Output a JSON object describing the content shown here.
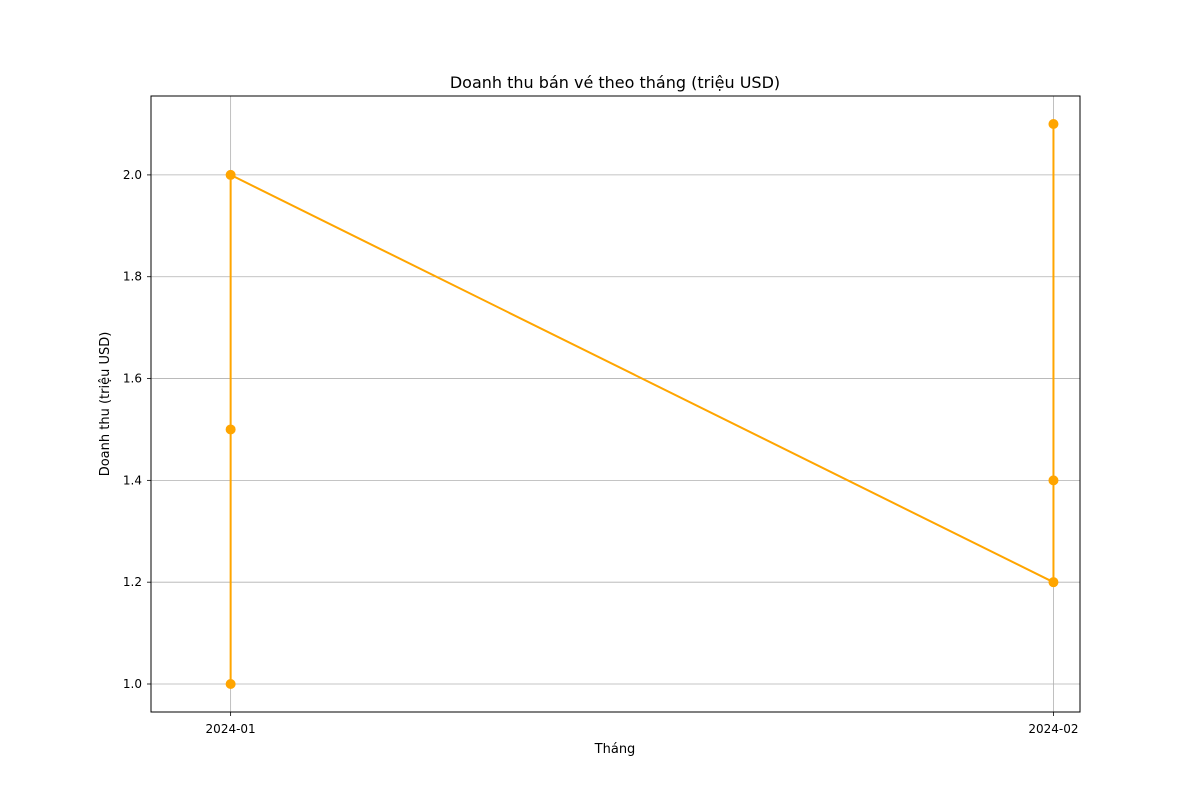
{
  "chart_data": {
    "type": "line",
    "title": "Doanh thu bán vé theo tháng (triệu USD)",
    "xlabel": "Tháng",
    "ylabel": "Doanh thu (triệu USD)",
    "x_tick_labels": [
      "2024-01",
      "2024-02"
    ],
    "y_tick_labels": [
      "1.0",
      "1.2",
      "1.4",
      "1.6",
      "1.8",
      "2.0"
    ],
    "y_ticks": [
      1.0,
      1.2,
      1.4,
      1.6,
      1.8,
      2.0
    ],
    "xlim": [
      "2023-12-29",
      "2024-02-02"
    ],
    "ylim": [
      0.945,
      2.155
    ],
    "grid": true,
    "line_color": "#ffa500",
    "series": [
      {
        "x": [
          "2024-01",
          "2024-01",
          "2024-01",
          "2024-02",
          "2024-02",
          "2024-02"
        ],
        "values": [
          1.0,
          1.5,
          2.0,
          1.2,
          1.4,
          2.1
        ]
      }
    ]
  }
}
